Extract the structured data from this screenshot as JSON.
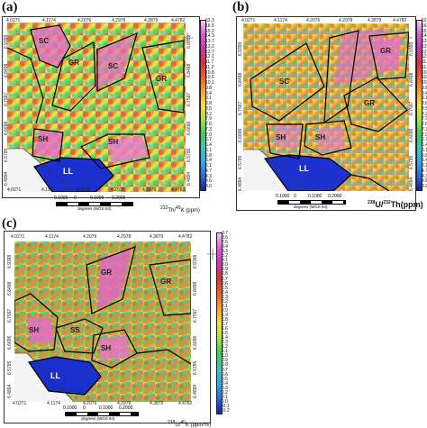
{
  "panels": [
    {
      "label": "(a)",
      "x_ticks": [
        "4.0271",
        "4.1174",
        "4.2076",
        "4.2978",
        "4.3879",
        "4.4782"
      ],
      "y_ticks": [
        "6.9399",
        "6.8498",
        "6.7597",
        "6.6696",
        "6.5795",
        "6.4894"
      ],
      "colorbar_values": [
        "62.3",
        "16.5",
        "15.2",
        "14.3",
        "13.7",
        "13.2",
        "12.7",
        "12.1",
        "11.7",
        "11.2",
        "10.8",
        "10.5",
        "10.1",
        "9.8",
        "9.4",
        "9.1",
        "8.8",
        "8.5",
        "8.2",
        "7.9",
        "7.6",
        "7.3",
        "7.0",
        "6.7",
        "6.4",
        "6.1",
        "5.8",
        "5.4",
        "5.1",
        "4.7",
        "4.3",
        "3.6",
        "3.0"
      ],
      "colorbar_title_sup1": "232",
      "colorbar_title_main": "Th/",
      "colorbar_title_sup2": "40",
      "colorbar_title_tail": "K (ppm)",
      "units": [
        "SC",
        "GR",
        "SC",
        "GR",
        "SH",
        "SH",
        "LL"
      ],
      "scale_labels": [
        "0.1000",
        "0",
        "0.1000",
        "0.2000"
      ],
      "scale_unit": "degrees (WGS 84)"
    },
    {
      "label": "(b)",
      "x_ticks": [
        "4.0271",
        "4.1174",
        "4.2076",
        "4.2978",
        "4.3879",
        "4.4782"
      ],
      "y_ticks": [
        "6.9399",
        "6.8498",
        "6.7597",
        "6.6696",
        "6.5795",
        "6.4894"
      ],
      "colorbar_values": [
        "62.3",
        "16.5",
        "15.2",
        "14.3",
        "13.7",
        "13.2",
        "12.7",
        "12.1",
        "11.7",
        "11.2",
        "10.8",
        "10.5",
        "10.1",
        "9.8",
        "9.4",
        "9.1",
        "8.8",
        "8.5",
        "8.2",
        "7.9",
        "7.6",
        "7.3",
        "7.0",
        "6.7",
        "6.4",
        "6.1",
        "5.8",
        "5.4",
        "5.1",
        "4.7",
        "4.3",
        "3.6",
        "3.0"
      ],
      "colorbar_title_sup1": "238",
      "colorbar_title_main": "U/",
      "colorbar_title_sup2": "232",
      "colorbar_title_tail": "Th(ppm)",
      "units": [
        "SC",
        "GR",
        "GR",
        "SH",
        "SH",
        "LL"
      ],
      "scale_labels": [
        "0.1000",
        "0",
        "0.1000",
        "0.2000"
      ],
      "scale_unit": "degrees (WGS 84)"
    },
    {
      "label": "(c)",
      "x_ticks": [
        "4.0271",
        "4.1174",
        "4.2076",
        "4.2978",
        "4.3879",
        "4.4782"
      ],
      "y_ticks": [
        "6.9399",
        "6.8498",
        "6.7597",
        "6.6696",
        "6.5795",
        "6.4894"
      ],
      "colorbar_values": [
        "3.7",
        "3.6",
        "3.5",
        "3.4",
        "3.3",
        "3.2",
        "3.1",
        "3.0",
        "2.9",
        "2.8",
        "2.7",
        "2.6",
        "2.5",
        "2.4",
        "2.3",
        "2.2",
        "2.1",
        "2.0",
        "1.9",
        "1.8",
        "1.7",
        "1.6",
        "1.5",
        "1.4",
        "1.3",
        "1.2",
        "1.1",
        "1.0",
        "0.9",
        "0.8",
        "0.7",
        "0.6",
        "0.5",
        "0.4",
        "0.3",
        "0.2",
        "0.1",
        "0.0",
        "-0.1",
        "-0.2"
      ],
      "colorbar_title_sup1": "238",
      "colorbar_title_main": "U/",
      "colorbar_title_sup2": "40",
      "colorbar_title_tail": "K (ppm/%)",
      "units": [
        "GR",
        "GR",
        "SH",
        "SS",
        "SH",
        "LL"
      ],
      "scale_labels": [
        "0.1000",
        "0",
        "0.1000",
        "0.2000"
      ],
      "scale_unit": "degrees (WGS 84)"
    }
  ],
  "colors": {
    "colorbar_top": "#f2c7f2",
    "colorbar_mid": "#f4e13c",
    "colorbar_bottom": "#1a1aa8",
    "boundary": "#000000",
    "lowland": "#1730c8"
  }
}
